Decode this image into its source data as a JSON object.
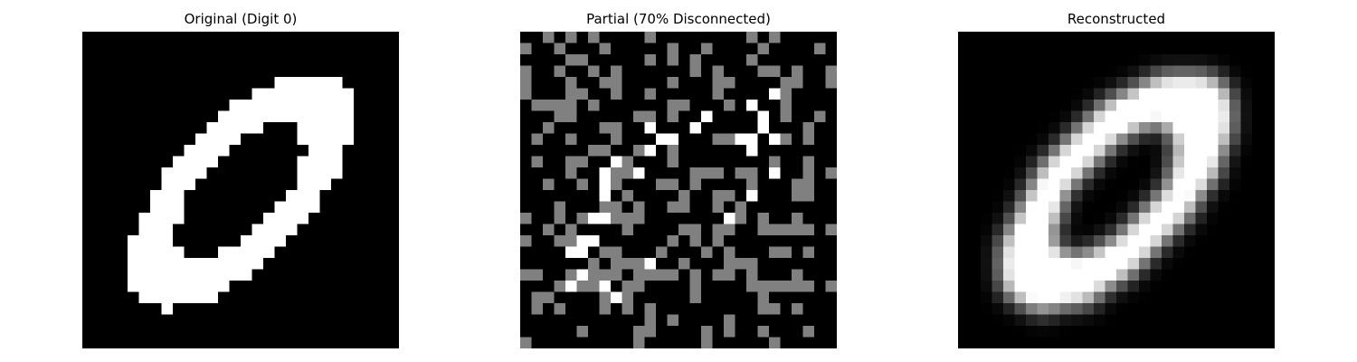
{
  "figure": {
    "background": "#ffffff",
    "panels": [
      {
        "id": "original",
        "title": "Original (Digit 0)",
        "kind": "binary"
      },
      {
        "id": "partial",
        "title": "Partial (70% Disconnected)",
        "kind": "masked"
      },
      {
        "id": "recon",
        "title": "Reconstructed",
        "kind": "blurred"
      }
    ],
    "grid": {
      "rows": 28,
      "cols": 28
    },
    "colors": {
      "on": "#ffffff",
      "off": "#000000",
      "masked": "#808080"
    }
  }
}
